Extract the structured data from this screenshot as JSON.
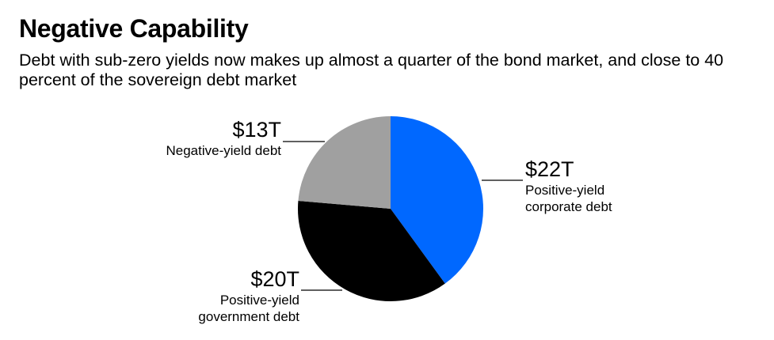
{
  "title": "Negative Capability",
  "subtitle": "Debt with sub-zero yields now makes up almost a quarter of the bond market, and close to 40 percent of the sovereign debt market",
  "chart_data": {
    "type": "pie",
    "title": "Negative Capability",
    "unit": "trillion USD",
    "slices": [
      {
        "label": "Positive-yield corporate debt",
        "value": 22,
        "value_label": "$22T",
        "color": "#0068ff"
      },
      {
        "label": "Positive-yield government debt",
        "value": 20,
        "value_label": "$20T",
        "color": "#000000"
      },
      {
        "label": "Negative-yield debt",
        "value": 13,
        "value_label": "$13T",
        "color": "#a0a0a0"
      }
    ],
    "start": "top",
    "direction": "clockwise"
  },
  "labels": {
    "corporate": {
      "value": "$22T",
      "line1": "Positive-yield",
      "line2": "corporate debt"
    },
    "government": {
      "value": "$20T",
      "line1": "Positive-yield",
      "line2": "government debt"
    },
    "negative": {
      "value": "$13T",
      "line1": "Negative-yield debt"
    }
  }
}
